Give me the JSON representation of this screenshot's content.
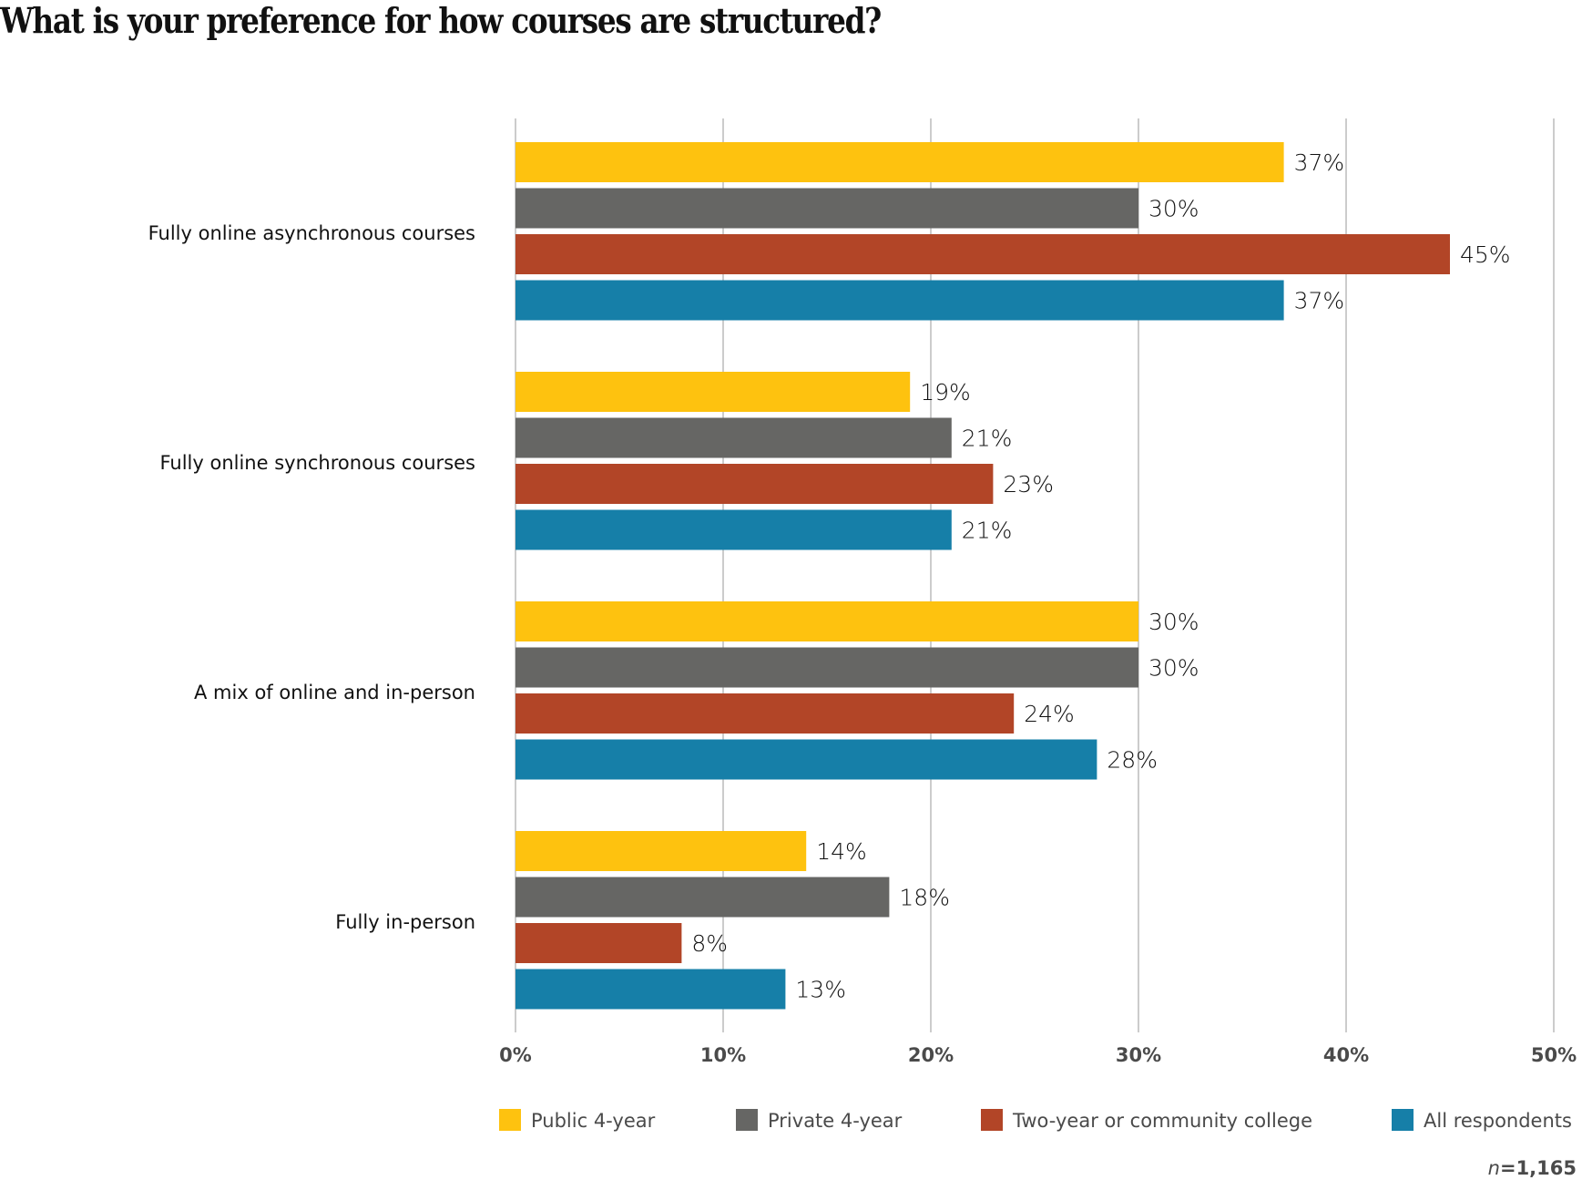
{
  "chart_data": {
    "type": "bar",
    "orientation": "horizontal",
    "title": "What is your preference for how courses are structured?",
    "categories": [
      "Fully online asynchronous courses",
      "Fully online synchronous courses",
      "A mix of online and in-person",
      "Fully in-person"
    ],
    "series": [
      {
        "name": "Public 4-year",
        "color": "#FEC20F",
        "values": [
          37,
          19,
          30,
          14
        ]
      },
      {
        "name": "Private 4-year",
        "color": "#666664",
        "values": [
          30,
          21,
          30,
          18
        ]
      },
      {
        "name": "Two-year or community college",
        "color": "#B24527",
        "values": [
          45,
          23,
          24,
          8
        ]
      },
      {
        "name": "All respondents",
        "color": "#167FA8",
        "values": [
          37,
          21,
          28,
          13
        ]
      }
    ],
    "value_suffix": "%",
    "xlim": [
      0,
      50
    ],
    "xticks": [
      0,
      10,
      20,
      30,
      40,
      50
    ],
    "xtick_labels": [
      "0%",
      "10%",
      "20%",
      "30%",
      "40%",
      "50%"
    ],
    "xlabel": "",
    "ylabel": "",
    "grid": true,
    "legend_position": "bottom",
    "note": "n=1,165"
  }
}
